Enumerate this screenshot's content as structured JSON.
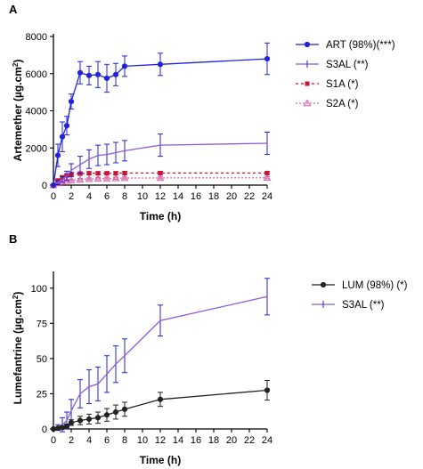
{
  "colors": {
    "blue": "#2222dd",
    "violet": "#8a5ad8",
    "red": "#cc1133",
    "pink": "#d86aa8",
    "black": "#222222",
    "axis": "#000000"
  },
  "chart_data": [
    {
      "panel_label": "A",
      "type": "line",
      "xlabel": "Time (h)",
      "ylabel": "Artemether (µg.cm",
      "ylabel_sup": "2",
      "ylabel_close": ")",
      "xlim": [
        0,
        24
      ],
      "ylim": [
        0,
        8000
      ],
      "xticks": [
        "0",
        "2",
        "4",
        "6",
        "8",
        "10",
        "12",
        "14",
        "16",
        "18",
        "20",
        "22",
        "24"
      ],
      "yticks": [
        "0",
        "2000",
        "4000",
        "6000",
        "8000"
      ],
      "legend_position": "right",
      "series": [
        {
          "name": "ART (98%)(***)",
          "color": "#2222dd",
          "marker": "circle",
          "dash": "solid",
          "errbar_color": "#2222dd",
          "x": [
            0,
            0.5,
            1,
            1.5,
            2,
            3,
            4,
            5,
            6,
            7,
            8,
            12,
            24
          ],
          "y": [
            0,
            1600,
            2600,
            3200,
            4500,
            6050,
            5900,
            5950,
            5750,
            5950,
            6400,
            6500,
            6800
          ],
          "err": [
            0,
            600,
            800,
            500,
            400,
            600,
            500,
            700,
            750,
            600,
            550,
            600,
            850
          ]
        },
        {
          "name": "S3AL (**)",
          "color": "#8a5ad8",
          "marker": "none",
          "dash": "solid",
          "errbar_color": "#2222dd",
          "x": [
            0,
            0.5,
            1,
            1.5,
            2,
            3,
            4,
            5,
            6,
            7,
            8,
            12,
            24
          ],
          "y": [
            0,
            150,
            300,
            500,
            800,
            1100,
            1400,
            1600,
            1650,
            1750,
            1850,
            2150,
            2250
          ],
          "err": [
            0,
            100,
            150,
            250,
            350,
            450,
            500,
            550,
            550,
            550,
            550,
            600,
            600
          ]
        },
        {
          "name": "S1A (*)",
          "color": "#cc1133",
          "marker": "square",
          "dash": "3,3",
          "errbar_color": "#cc1133",
          "x": [
            0,
            0.5,
            1,
            1.5,
            2,
            3,
            4,
            5,
            6,
            7,
            8,
            12,
            24
          ],
          "y": [
            0,
            250,
            420,
            520,
            600,
            620,
            640,
            640,
            640,
            640,
            650,
            650,
            650
          ],
          "err": [
            0,
            60,
            80,
            80,
            80,
            80,
            80,
            80,
            80,
            80,
            80,
            80,
            80
          ]
        },
        {
          "name": "S2A (*)",
          "color": "#d86aa8",
          "marker": "triangle",
          "dash": "2,2",
          "errbar_color": "#d86aa8",
          "x": [
            0,
            0.5,
            1,
            1.5,
            2,
            3,
            4,
            5,
            6,
            7,
            8,
            12,
            24
          ],
          "y": [
            0,
            100,
            180,
            230,
            260,
            300,
            330,
            350,
            360,
            370,
            380,
            390,
            400
          ],
          "err": [
            0,
            40,
            50,
            50,
            60,
            60,
            60,
            60,
            60,
            60,
            60,
            60,
            60
          ]
        }
      ]
    },
    {
      "panel_label": "B",
      "type": "line",
      "xlabel": "Time (h)",
      "ylabel": "Lumefantrine (µg.cm",
      "ylabel_sup": "2",
      "ylabel_close": ")",
      "xlim": [
        0,
        24
      ],
      "ylim": [
        0,
        110
      ],
      "xticks": [
        "0",
        "2",
        "4",
        "6",
        "8",
        "10",
        "12",
        "14",
        "16",
        "18",
        "20",
        "22",
        "24"
      ],
      "yticks": [
        "0",
        "25",
        "50",
        "75",
        "100"
      ],
      "legend_position": "right",
      "series": [
        {
          "name": "LUM (98%) (*)",
          "color": "#222222",
          "marker": "circle",
          "dash": "solid",
          "errbar_color": "#222222",
          "x": [
            0,
            0.5,
            1,
            1.5,
            2,
            3,
            4,
            5,
            6,
            7,
            8,
            12,
            24
          ],
          "y": [
            0,
            0.5,
            1,
            2,
            4.5,
            6,
            7,
            8,
            10,
            12,
            14,
            21,
            27.5
          ],
          "err": [
            0,
            0.5,
            1,
            1.5,
            2,
            3,
            3.5,
            4,
            4.5,
            5,
            5,
            5,
            7
          ]
        },
        {
          "name": "S3AL (**)",
          "color": "#8a5ad8",
          "marker": "none",
          "dash": "solid",
          "errbar_color": "#2222dd",
          "x": [
            0,
            0.5,
            1,
            1.5,
            2,
            3,
            4,
            5,
            6,
            7,
            8,
            12,
            24
          ],
          "y": [
            0,
            1,
            3,
            6,
            13,
            25,
            30,
            32,
            39,
            46,
            52,
            77,
            94
          ],
          "err": [
            0,
            2,
            5,
            6,
            8,
            10,
            12,
            12,
            13,
            13,
            12,
            11,
            13
          ]
        }
      ]
    }
  ]
}
